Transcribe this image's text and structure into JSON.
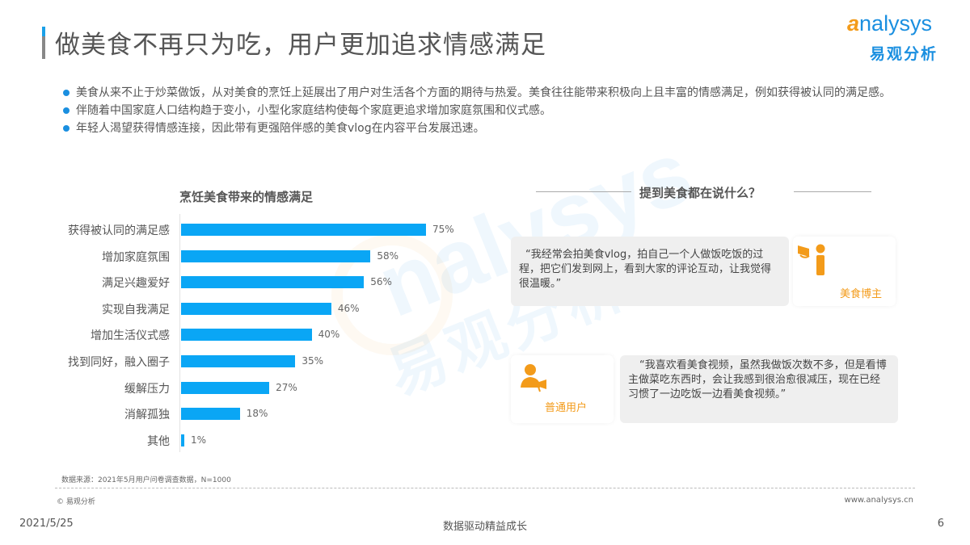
{
  "header": {
    "title": "做美食不再只为吃，用户更加追求情感满足",
    "logo_en_prefix": "a",
    "logo_en_rest": "nalysys",
    "logo_cn": "易观分析"
  },
  "bullets": [
    "美食从来不止于炒菜做饭，从对美食的烹饪上延展出了用户对生活各个方面的期待与热爱。美食往往能带来积极向上且丰富的情感满足，例如获得被认同的满足感。",
    "伴随着中国家庭人口结构趋于变小，小型化家庭结构使每个家庭更追求增加家庭氛围和仪式感。",
    "年轻人渴望获得情感连接，因此带有更强陪伴感的美食vlog在内容平台发展迅速。"
  ],
  "chart_data": {
    "type": "bar",
    "orientation": "horizontal",
    "title": "烹饪美食带来的情感满足",
    "categories": [
      "获得被认同的满足感",
      "增加家庭氛围",
      "满足兴趣爱好",
      "实现自我满足",
      "增加生活仪式感",
      "找到同好，融入圈子",
      "缓解压力",
      "消解孤独",
      "其他"
    ],
    "values": [
      75,
      58,
      56,
      46,
      40,
      35,
      27,
      18,
      1
    ],
    "value_labels": [
      "75%",
      "58%",
      "56%",
      "46%",
      "40%",
      "35%",
      "27%",
      "18%",
      "1%"
    ],
    "unit": "%",
    "xlabel": "",
    "ylabel": "",
    "grid": false,
    "legend": null,
    "bar_color": "#0aa6f5"
  },
  "quotes_section": {
    "title": "提到美食都在说什么？",
    "items": [
      {
        "role": "美食博主",
        "icon": "megaphone-person-icon",
        "text": "“我经常会拍美食vlog，拍自己一个人做饭吃饭的过程，把它们发到网上，看到大家的评论互动，让我觉得很温暖。”"
      },
      {
        "role": "普通用户",
        "icon": "user-megaphone-icon",
        "text": "“我喜欢看美食视频，虽然我做饭次数不多，但是看博主做菜吃东西时，会让我感到很治愈很减压，现在已经习惯了一边吃饭一边看美食视频。”"
      }
    ],
    "accent_color": "#f39b1a"
  },
  "watermark": {
    "en": "nalysys",
    "cn": "易观分析"
  },
  "footnotes": {
    "source": "数据来源：2021年5月用户问卷调查数据，N=1000",
    "copyright": "© 易观分析",
    "website": "www.analysys.cn"
  },
  "footer": {
    "date": "2021/5/25",
    "slogan": "数据驱动精益成长",
    "page": "6"
  }
}
